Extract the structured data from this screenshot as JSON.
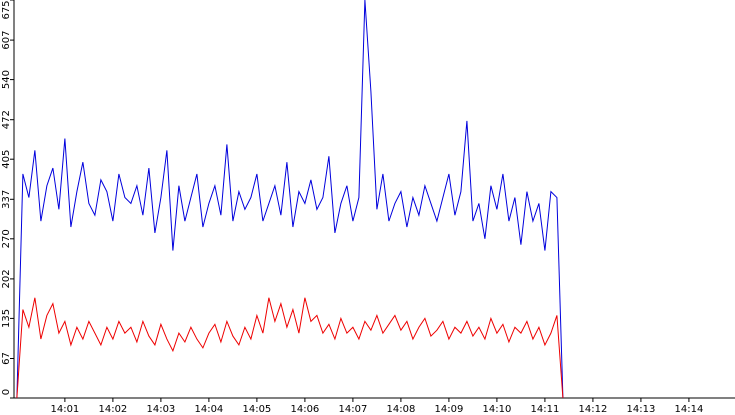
{
  "chart_data": {
    "type": "line",
    "x": [
      0,
      0.125,
      0.25,
      0.375,
      0.5,
      0.625,
      0.75,
      0.875,
      1,
      1.125,
      1.25,
      1.375,
      1.5,
      1.625,
      1.75,
      1.875,
      2,
      2.125,
      2.25,
      2.375,
      2.5,
      2.625,
      2.75,
      2.875,
      3,
      3.125,
      3.25,
      3.375,
      3.5,
      3.625,
      3.75,
      3.875,
      4,
      4.125,
      4.25,
      4.375,
      4.5,
      4.625,
      4.75,
      4.875,
      5,
      5.125,
      5.25,
      5.375,
      5.5,
      5.625,
      5.75,
      5.875,
      6,
      6.125,
      6.25,
      6.375,
      6.5,
      6.625,
      6.75,
      6.875,
      7,
      7.125,
      7.25,
      7.375,
      7.5,
      7.625,
      7.75,
      7.875,
      8,
      8.125,
      8.25,
      8.375,
      8.5,
      8.625,
      8.75,
      8.875,
      9,
      9.125,
      9.25,
      9.375,
      9.5,
      9.625,
      9.75,
      9.875,
      10,
      10.125,
      10.25,
      10.375,
      10.5,
      10.625,
      10.75,
      10.875,
      11,
      11.125,
      11.25,
      11.375
    ],
    "series": [
      {
        "color": "#0000dd",
        "values": [
          0,
          380,
          340,
          420,
          300,
          360,
          390,
          320,
          440,
          290,
          350,
          400,
          330,
          310,
          370,
          350,
          300,
          380,
          340,
          330,
          360,
          310,
          390,
          280,
          340,
          420,
          250,
          360,
          300,
          340,
          380,
          290,
          330,
          360,
          310,
          430,
          300,
          350,
          320,
          340,
          380,
          300,
          330,
          360,
          310,
          400,
          290,
          350,
          330,
          370,
          320,
          340,
          410,
          280,
          330,
          360,
          300,
          340,
          675,
          520,
          320,
          380,
          300,
          330,
          350,
          290,
          340,
          310,
          360,
          330,
          300,
          340,
          380,
          310,
          350,
          470,
          300,
          330,
          270,
          360,
          320,
          380,
          300,
          340,
          260,
          350,
          300,
          330,
          250,
          350,
          340,
          0
        ]
      },
      {
        "color": "#ee0000",
        "values": [
          0,
          150,
          120,
          170,
          100,
          140,
          160,
          110,
          130,
          90,
          120,
          100,
          130,
          110,
          90,
          120,
          100,
          130,
          110,
          120,
          95,
          130,
          105,
          90,
          125,
          100,
          80,
          110,
          95,
          120,
          100,
          85,
          110,
          125,
          95,
          130,
          105,
          90,
          120,
          100,
          140,
          110,
          170,
          130,
          160,
          120,
          150,
          110,
          170,
          130,
          140,
          110,
          125,
          100,
          135,
          110,
          120,
          100,
          130,
          115,
          140,
          110,
          125,
          140,
          115,
          130,
          100,
          120,
          135,
          105,
          115,
          130,
          100,
          120,
          110,
          130,
          105,
          120,
          100,
          135,
          110,
          125,
          95,
          120,
          110,
          130,
          100,
          120,
          90,
          110,
          140,
          0
        ]
      }
    ],
    "ylim": [
      0,
      675
    ],
    "yticks": [
      0,
      67,
      135,
      202,
      270,
      337,
      405,
      472,
      540,
      607,
      675
    ],
    "xlim": [
      -0.06,
      14.96
    ],
    "xticks": [
      {
        "value": 1,
        "label": "14:01"
      },
      {
        "value": 2,
        "label": "14:02"
      },
      {
        "value": 3,
        "label": "14:03"
      },
      {
        "value": 4,
        "label": "14:04"
      },
      {
        "value": 5,
        "label": "14:05"
      },
      {
        "value": 6,
        "label": "14:06"
      },
      {
        "value": 7,
        "label": "14:07"
      },
      {
        "value": 8,
        "label": "14:08"
      },
      {
        "value": 9,
        "label": "14:09"
      },
      {
        "value": 10,
        "label": "14:10"
      },
      {
        "value": 11,
        "label": "14:11"
      },
      {
        "value": 12,
        "label": "14:12"
      },
      {
        "value": 13,
        "label": "14:13"
      },
      {
        "value": 14,
        "label": "14:14"
      }
    ]
  }
}
